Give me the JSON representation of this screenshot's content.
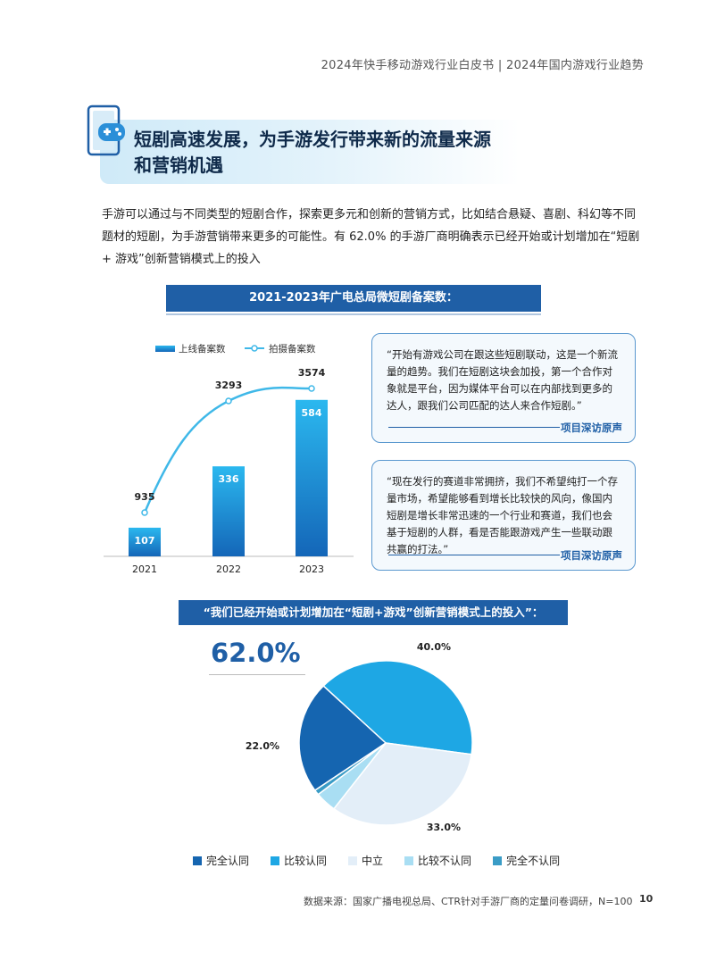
{
  "header": {
    "text": "2024年快手移动游戏行业白皮书  |  2024年国内游戏行业趋势"
  },
  "section": {
    "title_line1": "短剧高速发展，为手游发行带来新的流量来源",
    "title_line2": "和营销机遇",
    "icon": "gamepad-phone-icon"
  },
  "intro": "手游可以通过与不同类型的短剧合作，探索更多元和创新的营销方式，比如结合悬疑、喜剧、科幻等不同题材的短剧，为手游营销带来更多的可能性。有 62.0% 的手游厂商明确表示已经开始或计划增加在“短剧 + 游戏”创新营销模式上的投入",
  "chart1_title": "2021-2023年广电总局微短剧备案数：",
  "chart2_title": "“我们已经开始或计划增加在“短剧+游戏”创新营销模式上的投入”：",
  "quotes": [
    {
      "text": "“开始有游戏公司在跟这些短剧联动，这是一个新流量的趋势。我们在短剧这块会加投，第一个合作对象就是平台，因为媒体平台可以在内部找到更多的达人，跟我们公司匹配的达人来合作短剧。”",
      "source": "项目深访原声"
    },
    {
      "text": "“现在发行的赛道非常拥挤，我们不希望纯打一个存量市场，希望能够看到增长比较快的风向，像国内短剧是增长非常迅速的一个行业和赛道，我们也会基于短剧的人群，看是否能跟游戏产生一些联动跟共赢的打法。”",
      "source": "项目深访原声"
    }
  ],
  "pie_highlight": "62.0%",
  "footer": {
    "source": "数据来源：国家广播电视总局、CTR针对手游厂商的定量问卷调研，N=100",
    "page": "10"
  },
  "colors": {
    "primary": "#1f5fa6",
    "bar": "#1a8fd6",
    "line": "#3fb8e8"
  },
  "chart_data": [
    {
      "type": "bar",
      "categories": [
        "2021",
        "2022",
        "2023"
      ],
      "series": [
        {
          "name": "上线备案数",
          "type": "bar",
          "values": [
            107,
            336,
            584
          ]
        },
        {
          "name": "拍摄备案数",
          "type": "line",
          "values": [
            935,
            3293,
            3574
          ]
        }
      ],
      "legend": "top-left",
      "grid": false
    },
    {
      "type": "pie",
      "labels": [
        "完全认同",
        "比较认同",
        "中立",
        "比较不认同",
        "完全不认同"
      ],
      "values": [
        22.0,
        40.0,
        33.0,
        4.0,
        1.0
      ],
      "value_labels": [
        "22.0%",
        "40.0%",
        "33.0%",
        "",
        ""
      ],
      "colors": [
        "#1565b0",
        "#1ea7e4",
        "#e3eef8",
        "#a9def3",
        "#3a9cc6"
      ],
      "legend": "bottom"
    }
  ]
}
